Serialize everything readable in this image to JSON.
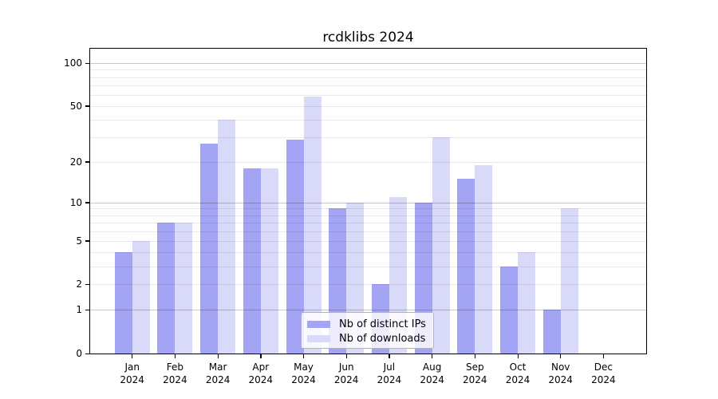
{
  "title": "rcdklibs 2024",
  "chart_data": {
    "type": "bar",
    "title": "rcdklibs 2024",
    "categories": [
      "Jan 2024",
      "Feb 2024",
      "Mar 2024",
      "Apr 2024",
      "May 2024",
      "Jun 2024",
      "Jul 2024",
      "Aug 2024",
      "Sep 2024",
      "Oct 2024",
      "Nov 2024",
      "Dec 2024"
    ],
    "series": [
      {
        "name": "Nb of distinct IPs",
        "color": "#a4a4f4",
        "values": [
          4,
          7,
          27,
          18,
          29,
          9,
          2,
          10,
          15,
          3,
          1,
          0
        ]
      },
      {
        "name": "Nb of downloads",
        "color": "#d9d9fa",
        "values": [
          5,
          7,
          40,
          18,
          58,
          10,
          11,
          30,
          19,
          4,
          9,
          0
        ]
      }
    ],
    "xlabel": "",
    "ylabel": "",
    "yscale": "log1p",
    "ylim": [
      0,
      126
    ],
    "yticks": [
      100,
      50,
      20,
      10,
      5,
      2,
      1,
      0
    ],
    "grid": {
      "major": [
        1,
        10,
        100
      ],
      "minor": [
        2,
        3,
        4,
        5,
        6,
        7,
        8,
        9,
        20,
        30,
        40,
        50,
        60,
        70,
        80,
        90
      ],
      "drawn_over_bars": true
    },
    "legend_position": "lower-center-inside"
  },
  "colors": {
    "background": "#ffffff",
    "bar_distinct_ips": "#a4a4f4",
    "bar_downloads": "#d9d9fa",
    "frame": "#000000",
    "grid_minor": "rgba(0,0,0,0.085)",
    "grid_major": "rgba(0,0,0,0.215)",
    "legend_border": "#b3b3b3",
    "text": "#000000"
  }
}
